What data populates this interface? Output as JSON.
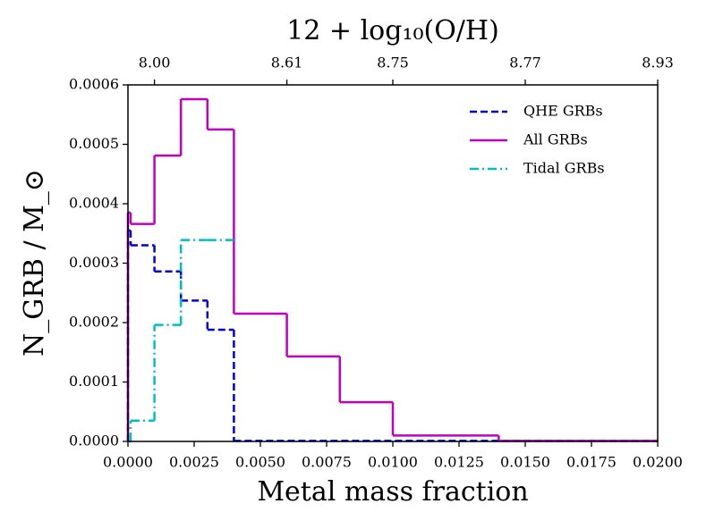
{
  "chart_data": {
    "type": "histogram",
    "title": "12 + log₁₀(O/H)",
    "xlabel": "Metal mass fraction",
    "ylabel": "N_GRB / M_⊙",
    "xlim": [
      0,
      0.02
    ],
    "ylim": [
      0,
      0.0006
    ],
    "xticks": [
      {
        "value": 0,
        "label": "0.0000"
      },
      {
        "value": 0.0025,
        "label": "0.0025"
      },
      {
        "value": 0.005,
        "label": "0.0050"
      },
      {
        "value": 0.0075,
        "label": "0.0075"
      },
      {
        "value": 0.01,
        "label": "0.0100"
      },
      {
        "value": 0.0125,
        "label": "0.0125"
      },
      {
        "value": 0.015,
        "label": "0.0150"
      },
      {
        "value": 0.0175,
        "label": "0.0175"
      },
      {
        "value": 0.02,
        "label": "0.0200"
      }
    ],
    "yticks": [
      {
        "value": 0,
        "label": "0.0000"
      },
      {
        "value": 0.0001,
        "label": "0.0001"
      },
      {
        "value": 0.0002,
        "label": "0.0002"
      },
      {
        "value": 0.0003,
        "label": "0.0003"
      },
      {
        "value": 0.0004,
        "label": "0.0004"
      },
      {
        "value": 0.0005,
        "label": "0.0005"
      },
      {
        "value": 0.0006,
        "label": "0.0006"
      }
    ],
    "x2ticks": [
      {
        "value": 0.001,
        "label": "8.00"
      },
      {
        "value": 0.006,
        "label": "8.61"
      },
      {
        "value": 0.01,
        "label": "8.75"
      },
      {
        "value": 0.015,
        "label": "8.77"
      },
      {
        "value": 0.02,
        "label": "8.93"
      }
    ],
    "legend": "upper right",
    "series": [
      {
        "name": "QHE GRBs",
        "color": "#0000dd",
        "linestyle": "dashed",
        "bins": [
          0,
          0.0001,
          0.001,
          0.002,
          0.003,
          0.004,
          0.02
        ],
        "values": [
          0.000355,
          0.00033,
          0.000286,
          0.000237,
          0.000188,
          1e-06
        ]
      },
      {
        "name": "All GRBs",
        "color": "#bf00bf",
        "linestyle": "solid",
        "bins": [
          0,
          0.0001,
          0.001,
          0.002,
          0.003,
          0.004,
          0.006,
          0.008,
          0.01,
          0.014,
          0.02
        ],
        "values": [
          0.000385,
          0.000366,
          0.000481,
          0.000576,
          0.000525,
          0.000215,
          0.000143,
          6.6e-05,
          1e-05,
          1e-06
        ]
      },
      {
        "name": "Tidal GRBs",
        "color": "#00bfbf",
        "linestyle": "dashdot",
        "bins": [
          0,
          0.0001,
          0.001,
          0.002,
          0.003,
          0.004
        ],
        "values": [
          0,
          3.5e-05,
          0.000196,
          0.000339,
          0.000339
        ]
      }
    ]
  }
}
